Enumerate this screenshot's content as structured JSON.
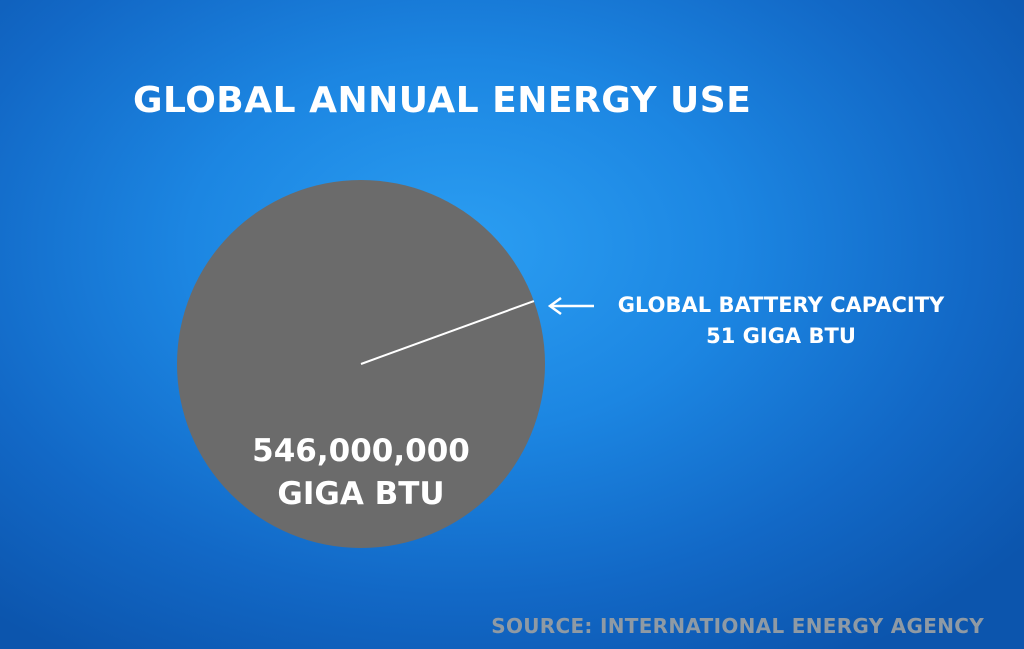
{
  "chart_data": {
    "type": "pie",
    "title": "GLOBAL ANNUAL ENERGY USE",
    "slices": [
      {
        "label_lines": [
          "546,000,000",
          "GIGA BTU"
        ],
        "value": 546000000,
        "color": "#6b6b6b"
      },
      {
        "label_lines": [
          "GLOBAL BATTERY CAPACITY",
          "51 GIGA BTU"
        ],
        "value": 51,
        "color": "#ffffff"
      }
    ],
    "source": "SOURCE:  INTERNATIONAL ENERGY AGENCY",
    "background_color": "#1c86e2",
    "arrow_icon": "arrow-left-icon"
  }
}
